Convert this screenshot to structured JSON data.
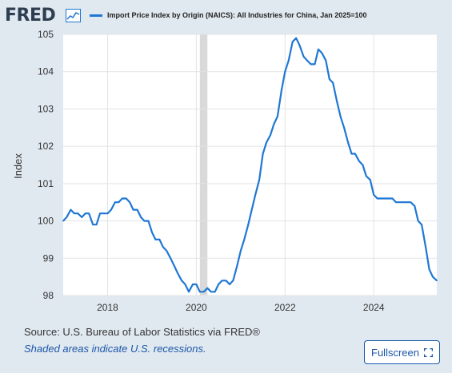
{
  "brand": {
    "logo_text": "FRED",
    "logo_icon": "chart-line-icon"
  },
  "legend": {
    "label": "Import Price Index by Origin (NAICS): All Industries for China, Jan 2025=100",
    "color": "#1f77d4"
  },
  "footer": {
    "source": "Source: U.S. Bureau of Labor Statistics via FRED®",
    "note": "Shaded areas indicate U.S. recessions.",
    "fullscreen_label": "Fullscreen",
    "fullscreen_icon": "expand-icon"
  },
  "chart_data": {
    "type": "line",
    "ylabel": "Index",
    "xlim": [
      2017.0,
      2025.42
    ],
    "ylim": [
      98,
      105
    ],
    "yticks": [
      98,
      99,
      100,
      101,
      102,
      103,
      104,
      105
    ],
    "xticks": [
      2018,
      2020,
      2022,
      2024
    ],
    "grid": true,
    "recession": {
      "start": 2020.08,
      "end": 2020.25,
      "color": "#d9d9d9"
    },
    "series": [
      {
        "name": "Import Price Index by Origin (NAICS): All Industries for China, Jan 2025=100",
        "color": "#1f77d4",
        "x": [
          2017.0,
          2017.08,
          2017.17,
          2017.25,
          2017.33,
          2017.42,
          2017.5,
          2017.58,
          2017.67,
          2017.75,
          2017.83,
          2017.92,
          2018.0,
          2018.08,
          2018.17,
          2018.25,
          2018.33,
          2018.42,
          2018.5,
          2018.58,
          2018.67,
          2018.75,
          2018.83,
          2018.92,
          2019.0,
          2019.08,
          2019.17,
          2019.25,
          2019.33,
          2019.42,
          2019.5,
          2019.58,
          2019.67,
          2019.75,
          2019.83,
          2019.92,
          2020.0,
          2020.08,
          2020.17,
          2020.25,
          2020.33,
          2020.42,
          2020.5,
          2020.58,
          2020.67,
          2020.75,
          2020.83,
          2020.92,
          2021.0,
          2021.08,
          2021.17,
          2021.25,
          2021.33,
          2021.42,
          2021.5,
          2021.58,
          2021.67,
          2021.75,
          2021.83,
          2021.92,
          2022.0,
          2022.08,
          2022.17,
          2022.25,
          2022.33,
          2022.42,
          2022.5,
          2022.58,
          2022.67,
          2022.75,
          2022.83,
          2022.92,
          2023.0,
          2023.08,
          2023.17,
          2023.25,
          2023.33,
          2023.42,
          2023.5,
          2023.58,
          2023.67,
          2023.75,
          2023.83,
          2023.92,
          2024.0,
          2024.08,
          2024.17,
          2024.25,
          2024.33,
          2024.42,
          2024.5,
          2024.58,
          2024.67,
          2024.75,
          2024.83,
          2024.92,
          2025.0,
          2025.08,
          2025.17,
          2025.25,
          2025.33,
          2025.42
        ],
        "y": [
          100.0,
          100.1,
          100.3,
          100.2,
          100.2,
          100.1,
          100.2,
          100.2,
          99.9,
          99.9,
          100.2,
          100.2,
          100.2,
          100.3,
          100.5,
          100.5,
          100.6,
          100.6,
          100.5,
          100.3,
          100.3,
          100.1,
          100.0,
          100.0,
          99.7,
          99.5,
          99.5,
          99.3,
          99.2,
          99.0,
          98.8,
          98.6,
          98.4,
          98.3,
          98.1,
          98.3,
          98.3,
          98.1,
          98.1,
          98.2,
          98.1,
          98.1,
          98.3,
          98.4,
          98.4,
          98.3,
          98.4,
          98.8,
          99.2,
          99.5,
          99.9,
          100.3,
          100.7,
          101.1,
          101.8,
          102.1,
          102.3,
          102.6,
          102.8,
          103.5,
          104.0,
          104.3,
          104.8,
          104.9,
          104.7,
          104.4,
          104.3,
          104.2,
          104.2,
          104.6,
          104.5,
          104.3,
          103.8,
          103.7,
          103.2,
          102.8,
          102.5,
          102.1,
          101.8,
          101.8,
          101.6,
          101.5,
          101.2,
          101.1,
          100.7,
          100.6,
          100.6,
          100.6,
          100.6,
          100.6,
          100.5,
          100.5,
          100.5,
          100.5,
          100.5,
          100.4,
          100.0,
          99.9,
          99.3,
          98.7,
          98.5,
          98.4
        ]
      }
    ]
  }
}
